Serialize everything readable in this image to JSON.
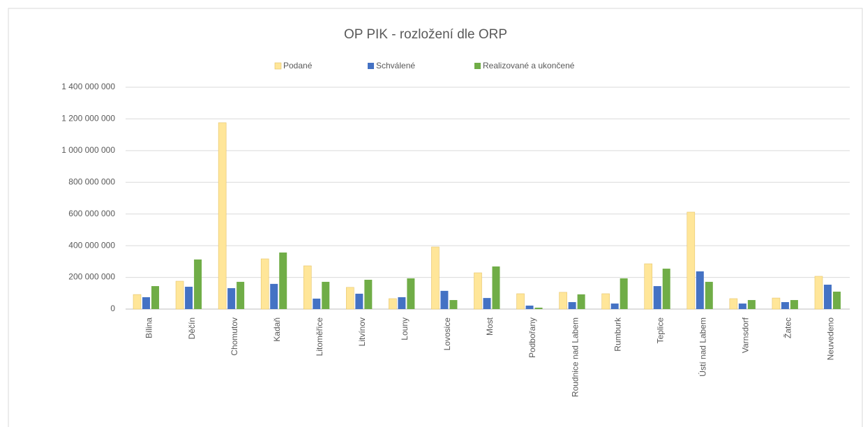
{
  "chart_data": {
    "type": "bar",
    "title": "OP PIK - rozložení dle ORP",
    "categories": [
      "Bílina",
      "Děčín",
      "Chomutov",
      "Kadaň",
      "Litoměřice",
      "Litvínov",
      "Louny",
      "Lovosice",
      "Most",
      "Podbořany",
      "Roudnice nad Labem",
      "Rumburk",
      "Teplice",
      "Ústí nad Labem",
      "Varnsdorf",
      "Žatec",
      "Neuvedeno"
    ],
    "series": [
      {
        "name": "Podané",
        "color": "#ffe699",
        "values": [
          92000000,
          176000000,
          1176000000,
          317000000,
          273000000,
          137000000,
          66000000,
          392000000,
          229000000,
          97000000,
          106000000,
          97000000,
          286000000,
          612000000,
          66000000,
          70000000,
          207000000
        ]
      },
      {
        "name": "Schválené",
        "color": "#4472c4",
        "values": [
          75000000,
          141000000,
          132000000,
          159000000,
          66000000,
          97000000,
          75000000,
          115000000,
          70000000,
          22000000,
          44000000,
          35000000,
          145000000,
          238000000,
          35000000,
          44000000,
          154000000
        ]
      },
      {
        "name": "Realizované a ukončené",
        "color": "#70ad47",
        "values": [
          145000000,
          313000000,
          172000000,
          357000000,
          172000000,
          185000000,
          194000000,
          57000000,
          269000000,
          9000000,
          93000000,
          194000000,
          255000000,
          172000000,
          57000000,
          57000000,
          110000000
        ]
      }
    ],
    "ylim": [
      0,
      1400000000
    ],
    "yticks": [
      0,
      {
        "value": 200000000,
        "label": "200 000 000"
      },
      {
        "value": 400000000,
        "label": "400 000 000"
      },
      {
        "value": 600000000,
        "label": "600 000 000"
      },
      {
        "value": 800000000,
        "label": "800 000 000"
      },
      {
        "value": 1000000000,
        "label": "1 000 000 000"
      },
      {
        "value": 1200000000,
        "label": "1 200 000 000"
      },
      {
        "value": 1400000000,
        "label": "1 400 000 000"
      }
    ],
    "grid": true,
    "legend": "top"
  }
}
